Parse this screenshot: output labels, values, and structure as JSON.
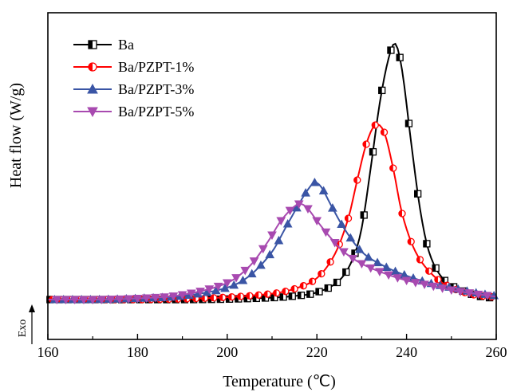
{
  "chart_data": {
    "type": "line",
    "xlabel": "Temperature (℃)",
    "ylabel": "Heat flow (W/g)",
    "exo_label": "Exo",
    "xlim": [
      160,
      260
    ],
    "x_ticks": [
      160,
      180,
      200,
      220,
      240,
      260
    ],
    "ylim": [
      0,
      1.1
    ],
    "grid": false,
    "legend_position": "top-left",
    "series": [
      {
        "name": "Ba",
        "color": "#000000",
        "marker": "square",
        "x": [
          160,
          170,
          180,
          190,
          200,
          210,
          215,
          220,
          225,
          228,
          230,
          232,
          234,
          236,
          237.5,
          239,
          241,
          243,
          245,
          248,
          252,
          256,
          260
        ],
        "y": [
          0.0,
          0.0,
          0.0,
          0.0,
          0.002,
          0.008,
          0.015,
          0.03,
          0.08,
          0.17,
          0.3,
          0.55,
          0.82,
          1.01,
          1.07,
          0.96,
          0.66,
          0.38,
          0.2,
          0.09,
          0.04,
          0.015,
          0.005
        ]
      },
      {
        "name": "Ba/PZPT-1%",
        "color": "#ff0000",
        "marker": "circle",
        "x": [
          160,
          170,
          180,
          190,
          200,
          210,
          215,
          220,
          224,
          227,
          229,
          231,
          233,
          235,
          237,
          239,
          242,
          246,
          250,
          255,
          260
        ],
        "y": [
          0.0,
          0.0,
          0.0,
          0.003,
          0.01,
          0.025,
          0.045,
          0.09,
          0.19,
          0.34,
          0.5,
          0.65,
          0.73,
          0.7,
          0.55,
          0.36,
          0.2,
          0.1,
          0.05,
          0.02,
          0.01
        ]
      },
      {
        "name": "Ba/PZPT-3%",
        "color": "#3a55a5",
        "marker": "triangle-up",
        "x": [
          160,
          170,
          180,
          190,
          200,
          205,
          210,
          213,
          216,
          218,
          219.5,
          221,
          223,
          226,
          230,
          235,
          240,
          245,
          250,
          255,
          260
        ],
        "y": [
          0.0,
          0.0,
          0.005,
          0.015,
          0.05,
          0.1,
          0.2,
          0.3,
          0.4,
          0.46,
          0.49,
          0.47,
          0.4,
          0.3,
          0.2,
          0.14,
          0.1,
          0.07,
          0.05,
          0.03,
          0.015
        ]
      },
      {
        "name": "Ba/PZPT-5%",
        "color": "#a84ab0",
        "marker": "triangle-down",
        "x": [
          160,
          170,
          180,
          190,
          200,
          205,
          209,
          212,
          215,
          216.5,
          218,
          220,
          223,
          226,
          230,
          235,
          240,
          245,
          250,
          255,
          260
        ],
        "y": [
          0.0,
          0.0,
          0.005,
          0.02,
          0.07,
          0.14,
          0.24,
          0.33,
          0.39,
          0.4,
          0.38,
          0.33,
          0.26,
          0.2,
          0.15,
          0.11,
          0.08,
          0.06,
          0.04,
          0.025,
          0.012
        ]
      }
    ]
  }
}
